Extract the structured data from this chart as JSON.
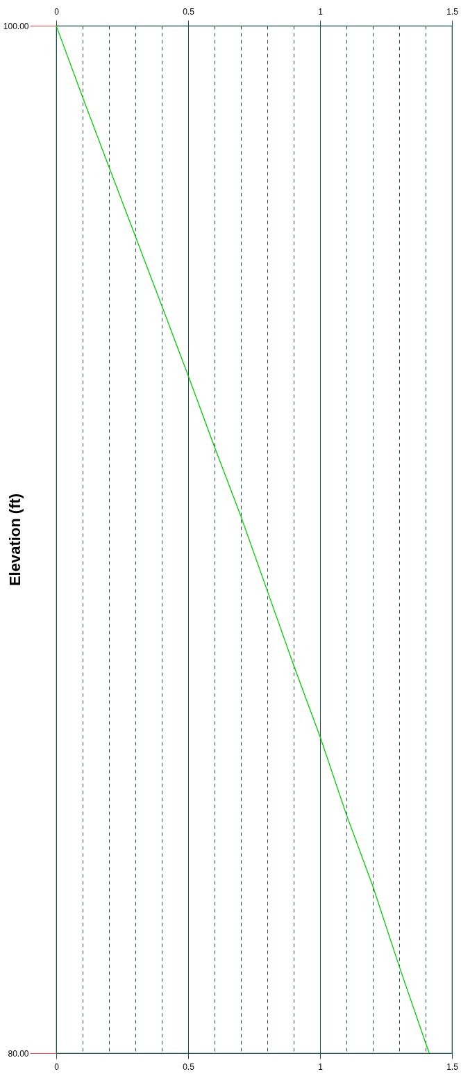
{
  "chart_data": {
    "type": "line",
    "ylabel": "Elevation (ft)",
    "x": [
      0,
      0.1,
      0.2,
      0.3,
      0.4,
      0.5,
      0.6,
      0.7,
      0.8,
      0.9,
      1.0,
      1.1,
      1.2,
      1.3,
      1.4,
      1.414
    ],
    "series": [
      {
        "color": "#00cc00",
        "values": [
          100,
          98.61,
          97.25,
          95.9,
          94.55,
          93.19,
          91.8,
          90.45,
          89.0,
          87.55,
          86.16,
          84.64,
          83.25,
          81.69,
          80.2,
          80
        ]
      }
    ],
    "xlim": [
      0,
      1.5
    ],
    "xticks": [
      0,
      {
        "value": 0.1,
        "label": null
      },
      {
        "value": 0.2,
        "label": null
      },
      {
        "value": 0.3,
        "label": null
      },
      {
        "value": 0.4,
        "label": null
      },
      0.5,
      {
        "value": 0.6,
        "label": null
      },
      {
        "value": 0.7,
        "label": null
      },
      {
        "value": 0.8,
        "label": null
      },
      {
        "value": 0.9,
        "label": null
      },
      1,
      {
        "value": 1.1,
        "label": null
      },
      {
        "value": 1.2,
        "label": null
      },
      {
        "value": 1.3,
        "label": null
      },
      {
        "value": 1.4,
        "label": null
      },
      1.5
    ],
    "x2lim": [
      0,
      1.5
    ],
    "x2ticks": [
      0,
      0.5,
      1,
      1.5
    ],
    "ylim": [
      80,
      100
    ],
    "yticks": [
      {
        "value": 80,
        "label": "80.00"
      },
      {
        "value": 100,
        "label": "100.00"
      }
    ],
    "grid": "x",
    "line_style": "solid"
  }
}
